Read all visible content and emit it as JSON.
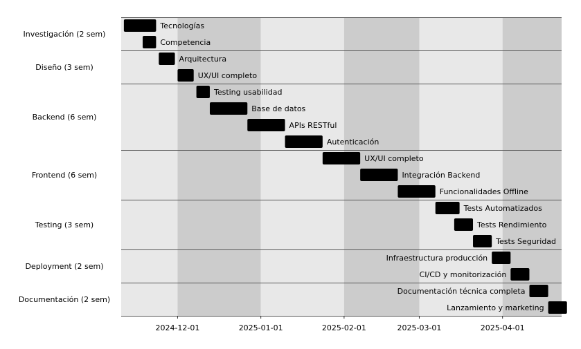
{
  "chart_data": {
    "type": "gantt",
    "title": "",
    "xlabel": "",
    "ylabel": "",
    "x_axis": {
      "type": "date",
      "range": [
        "2024-11-10",
        "2025-04-23"
      ],
      "ticks": [
        "2024-12-01",
        "2025-01-01",
        "2025-02-01",
        "2025-03-01",
        "2025-04-01"
      ]
    },
    "grid": false,
    "phases": [
      {
        "label": "Investigación (2 sem)",
        "rows": 2
      },
      {
        "label": "Diseño (3 sem)",
        "rows": 2
      },
      {
        "label": "Backend (6 sem)",
        "rows": 4
      },
      {
        "label": "Frontend (6 sem)",
        "rows": 3
      },
      {
        "label": "Testing (3 sem)",
        "rows": 3
      },
      {
        "label": "Deployment (2 sem)",
        "rows": 2
      },
      {
        "label": "Documentación (2 sem)",
        "rows": 2
      }
    ],
    "tasks": [
      {
        "name": "Tecnologías",
        "start": "2024-11-11",
        "end": "2024-11-23",
        "label_side": "right"
      },
      {
        "name": "Competencia",
        "start": "2024-11-18",
        "end": "2024-11-23",
        "label_side": "right"
      },
      {
        "name": "Arquitectura",
        "start": "2024-11-24",
        "end": "2024-11-30",
        "label_side": "right"
      },
      {
        "name": "UX/UI completo",
        "start": "2024-12-01",
        "end": "2024-12-07",
        "label_side": "right"
      },
      {
        "name": "Testing usabilidad",
        "start": "2024-12-08",
        "end": "2024-12-13",
        "label_side": "right"
      },
      {
        "name": "Base de datos",
        "start": "2024-12-13",
        "end": "2024-12-27",
        "label_side": "right"
      },
      {
        "name": "APIs RESTful",
        "start": "2024-12-27",
        "end": "2025-01-10",
        "label_side": "right"
      },
      {
        "name": "Autenticación",
        "start": "2025-01-10",
        "end": "2025-01-24",
        "label_side": "right"
      },
      {
        "name": "UX/UI completo",
        "start": "2025-01-24",
        "end": "2025-02-07",
        "label_side": "right"
      },
      {
        "name": "Integración Backend",
        "start": "2025-02-07",
        "end": "2025-02-21",
        "label_side": "right"
      },
      {
        "name": "Funcionalidades Offline",
        "start": "2025-02-21",
        "end": "2025-03-07",
        "label_side": "right"
      },
      {
        "name": "Tests Automatizados",
        "start": "2025-03-07",
        "end": "2025-03-16",
        "label_side": "right"
      },
      {
        "name": "Tests Rendimiento",
        "start": "2025-03-14",
        "end": "2025-03-21",
        "label_side": "right"
      },
      {
        "name": "Tests Seguridad",
        "start": "2025-03-21",
        "end": "2025-03-28",
        "label_side": "right"
      },
      {
        "name": "Infraestructura producción",
        "start": "2025-03-28",
        "end": "2025-04-04",
        "label_side": "left"
      },
      {
        "name": "CI/CD y monitorización",
        "start": "2025-04-04",
        "end": "2025-04-11",
        "label_side": "left"
      },
      {
        "name": "Documentación técnica completa",
        "start": "2025-04-11",
        "end": "2025-04-18",
        "label_side": "left"
      },
      {
        "name": "Lanzamiento y marketing",
        "start": "2025-04-18",
        "end": "2025-04-25",
        "label_side": "left"
      }
    ],
    "colors": {
      "bar": "#000000",
      "background_light": "#e8e8e8",
      "background_dark": "#cccccc",
      "separator": "#555555"
    }
  }
}
